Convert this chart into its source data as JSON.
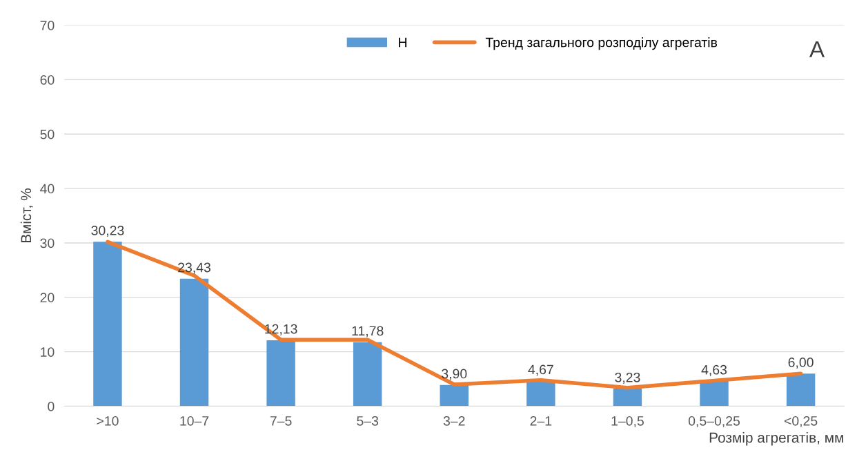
{
  "chart_data": {
    "type": "bar",
    "ylabel": "Вміст, %",
    "xlabel": "Розмір агрегатів, мм",
    "categories": [
      ">10",
      "10–7",
      "7–5",
      "5–3",
      "3–2",
      "2–1",
      "1–0,5",
      "0,5–0,25",
      "<0,25"
    ],
    "series": [
      {
        "name": "Н",
        "color": "#5b9bd5",
        "values": [
          30.23,
          23.43,
          12.13,
          11.78,
          3.9,
          4.67,
          3.23,
          4.63,
          6.0
        ],
        "value_labels": [
          "30,23",
          "23,43",
          "12,13",
          "11,78",
          "3,90",
          "4,67",
          "3,23",
          "4,63",
          "6,00"
        ]
      },
      {
        "name": "Тренд загального розподілу агрегатів",
        "type": "line",
        "color": "#ed7d31",
        "values": [
          30.2,
          24.0,
          12.2,
          12.2,
          4.0,
          4.8,
          3.4,
          4.7,
          6.0
        ]
      }
    ],
    "ylim": [
      0,
      70
    ],
    "yticks": [
      0,
      10,
      20,
      30,
      40,
      50,
      60,
      70
    ],
    "grid": "y",
    "legend": "top",
    "annotations": [
      "А"
    ]
  }
}
